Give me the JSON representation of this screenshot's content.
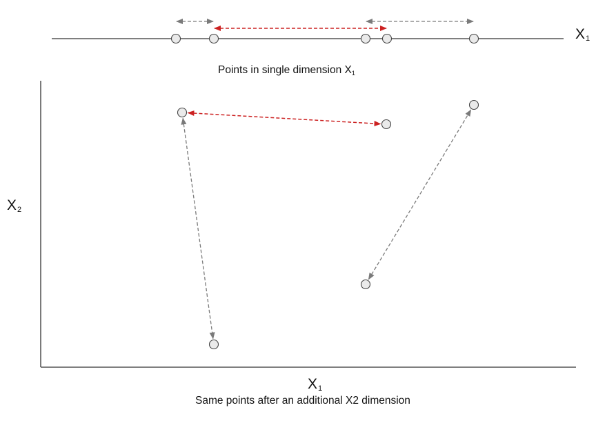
{
  "top_panel": {
    "axis_label": {
      "base": "X",
      "sub": "1"
    },
    "caption_prefix": "Points in single dimension X",
    "caption_sub": "1",
    "points": [
      {
        "id": "p1",
        "x1": 255
      },
      {
        "id": "p2",
        "x1": 310
      },
      {
        "id": "p3",
        "x1": 530
      },
      {
        "id": "p4",
        "x1": 561
      },
      {
        "id": "p5",
        "x1": 687
      }
    ],
    "connections": [
      {
        "from": "p1",
        "to": "p2",
        "color": "grey",
        "row": "upper"
      },
      {
        "from": "p3",
        "to": "p5",
        "color": "grey",
        "row": "upper"
      },
      {
        "from": "p2",
        "to": "p4",
        "color": "red",
        "row": "lower"
      }
    ]
  },
  "bottom_panel": {
    "y_axis_label": {
      "base": "X",
      "sub": "2"
    },
    "x_axis_label": {
      "base": "X",
      "sub": "1"
    },
    "caption": "Same points after an additional X2 dimension",
    "points": [
      {
        "id": "q1",
        "x1": 264,
        "x2": 163
      },
      {
        "id": "q2",
        "x1": 560,
        "x2": 180
      },
      {
        "id": "q3",
        "x1": 687,
        "x2": 152
      },
      {
        "id": "q4",
        "x1": 530,
        "x2": 412
      },
      {
        "id": "q5",
        "x1": 310,
        "x2": 499
      }
    ],
    "connections": [
      {
        "from": "q1",
        "to": "q2",
        "color": "red"
      },
      {
        "from": "q1",
        "to": "q5",
        "color": "grey"
      },
      {
        "from": "q4",
        "to": "q3",
        "color": "grey"
      }
    ]
  },
  "colors": {
    "red": "#cc2222",
    "grey": "#7a7a7a",
    "axis": "#333333",
    "point_fill": "#eaeaea",
    "point_stroke": "#444444"
  }
}
